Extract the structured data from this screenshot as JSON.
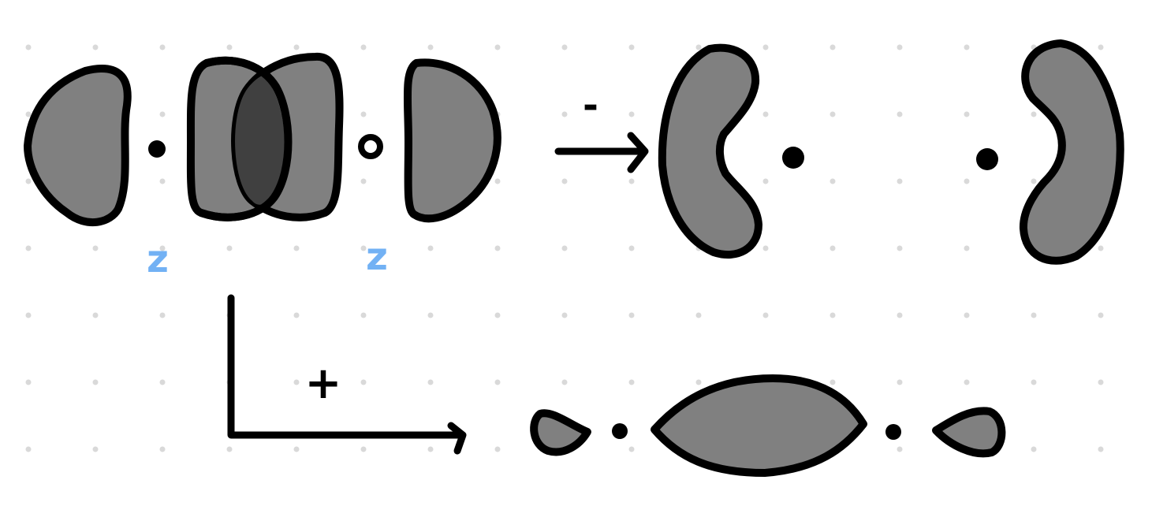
{
  "labels": {
    "minus_sign": "-",
    "plus_sign": "+",
    "axis_label_left": "z",
    "axis_label_right": "z"
  },
  "colors": {
    "ink": "#000000",
    "lobe_fill": "#808080",
    "overlap_fill": "#404040",
    "label_blue": "#72b1f4",
    "dot_grid": "#d9d9d9",
    "background": "#ffffff"
  },
  "icons": {
    "minus_arrow": "right-arrow-icon",
    "plus_arrow": "elbow-arrow-icon"
  }
}
